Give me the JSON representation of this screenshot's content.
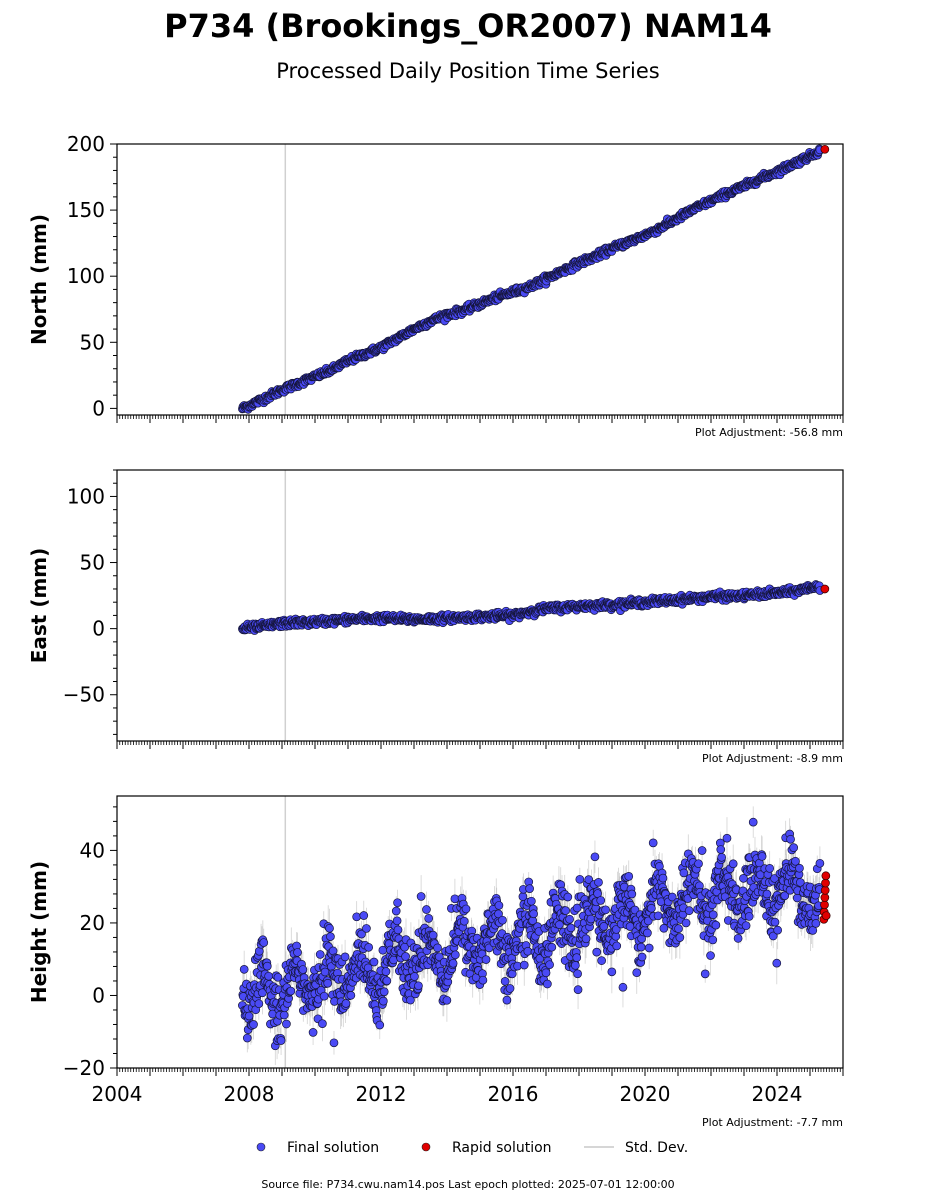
{
  "figure": {
    "title": "P734 (Brookings_OR2007) NAM14",
    "subtitle": "Processed Daily Position Time Series",
    "source_note": "Source file: P734.cwu.nam14.pos  Last epoch plotted: 2025-07-01 12:00:00"
  },
  "legend": {
    "placement": "bottom-center",
    "items": [
      {
        "label": "Final solution",
        "color": "#4a4af5",
        "kind": "marker"
      },
      {
        "label": "Rapid solution",
        "color": "#e00000",
        "kind": "marker"
      },
      {
        "label": "Std. Dev.",
        "color": "#c8c8c8",
        "kind": "line"
      }
    ]
  },
  "chart_data": [
    {
      "type": "scatter",
      "ylabel": "North (mm)",
      "adjustment": "Plot Adjustment: -56.8 mm",
      "xlim": [
        2004,
        2026
      ],
      "ylim": [
        -5,
        200
      ],
      "yticks": [
        0,
        50,
        100,
        150,
        200
      ],
      "xticks": [
        2004,
        2008,
        2012,
        2016,
        2020,
        2024
      ],
      "show_xtick_labels": false,
      "reference_line_x": 2009.1,
      "final_series": {
        "x": [
          2007.8,
          2008.0,
          2008.5,
          2009.0,
          2009.5,
          2010.0,
          2010.5,
          2011.0,
          2011.5,
          2012.0,
          2012.5,
          2013.0,
          2013.5,
          2014.0,
          2014.5,
          2015.0,
          2015.5,
          2016.0,
          2016.5,
          2017.0,
          2017.5,
          2018.0,
          2018.5,
          2019.0,
          2019.5,
          2020.0,
          2020.5,
          2021.0,
          2021.5,
          2022.0,
          2022.5,
          2023.0,
          2023.5,
          2024.0,
          2024.5,
          2025.0,
          2025.3
        ],
        "y": [
          0,
          2,
          8,
          14,
          19,
          24,
          29,
          36,
          41,
          46,
          53,
          60,
          66,
          71,
          74,
          79,
          84,
          88,
          92,
          98,
          104,
          110,
          115,
          121,
          126,
          131,
          137,
          144,
          151,
          157,
          163,
          168,
          174,
          179,
          185,
          191,
          195
        ]
      },
      "rapid_series": {
        "x": [
          2025.45
        ],
        "y": [
          196
        ]
      },
      "noise_mm": 1.2,
      "std_dev_mm": 1.5
    },
    {
      "type": "scatter",
      "ylabel": "East (mm)",
      "adjustment": "Plot Adjustment: -8.9 mm",
      "xlim": [
        2004,
        2026
      ],
      "ylim": [
        -85,
        120
      ],
      "yticks": [
        -50,
        0,
        50,
        100
      ],
      "xticks": [
        2004,
        2008,
        2012,
        2016,
        2020,
        2024
      ],
      "show_xtick_labels": false,
      "reference_line_x": 2009.1,
      "final_series": {
        "x": [
          2007.8,
          2008.5,
          2009.0,
          2010.0,
          2011.0,
          2012.0,
          2013.0,
          2014.0,
          2015.0,
          2016.0,
          2016.5,
          2017.0,
          2018.0,
          2019.0,
          2020.0,
          2021.0,
          2022.0,
          2023.0,
          2024.0,
          2024.5,
          2025.0,
          2025.3
        ],
        "y": [
          0,
          2,
          4,
          5,
          7,
          8,
          7,
          8,
          9,
          10,
          13,
          15,
          17,
          18,
          20,
          22,
          24,
          25,
          27,
          28,
          31,
          32
        ]
      },
      "rapid_series": {
        "x": [
          2025.45
        ],
        "y": [
          30
        ]
      },
      "noise_mm": 1.3,
      "std_dev_mm": 1.5
    },
    {
      "type": "scatter",
      "ylabel": "Height (mm)",
      "adjustment": "Plot Adjustment: -7.7 mm",
      "xlim": [
        2004,
        2026
      ],
      "ylim": [
        -20,
        55
      ],
      "yticks": [
        -20,
        0,
        20,
        40
      ],
      "xticks": [
        2004,
        2008,
        2012,
        2016,
        2020,
        2024
      ],
      "show_xtick_labels": true,
      "reference_line_x": 2009.1,
      "final_series": {
        "x": [
          2007.8,
          2009.0,
          2010.0,
          2011.0,
          2012.0,
          2013.0,
          2014.0,
          2015.0,
          2016.0,
          2017.0,
          2018.0,
          2019.0,
          2020.0,
          2021.0,
          2022.0,
          2023.0,
          2024.0,
          2025.0,
          2025.3
        ],
        "y": [
          0,
          2,
          4,
          6,
          8,
          10,
          12,
          15,
          16,
          17,
          19,
          21,
          23,
          26,
          27,
          28,
          30,
          28,
          27
        ]
      },
      "seasonal_amplitude_mm": 6,
      "noise_mm": 4.5,
      "std_dev_mm": 4,
      "rapid_series": {
        "x": [
          2025.42,
          2025.43,
          2025.44,
          2025.45,
          2025.46,
          2025.47,
          2025.48,
          2025.49
        ],
        "y": [
          21,
          23,
          25,
          27,
          29,
          31,
          33,
          22
        ]
      }
    }
  ]
}
